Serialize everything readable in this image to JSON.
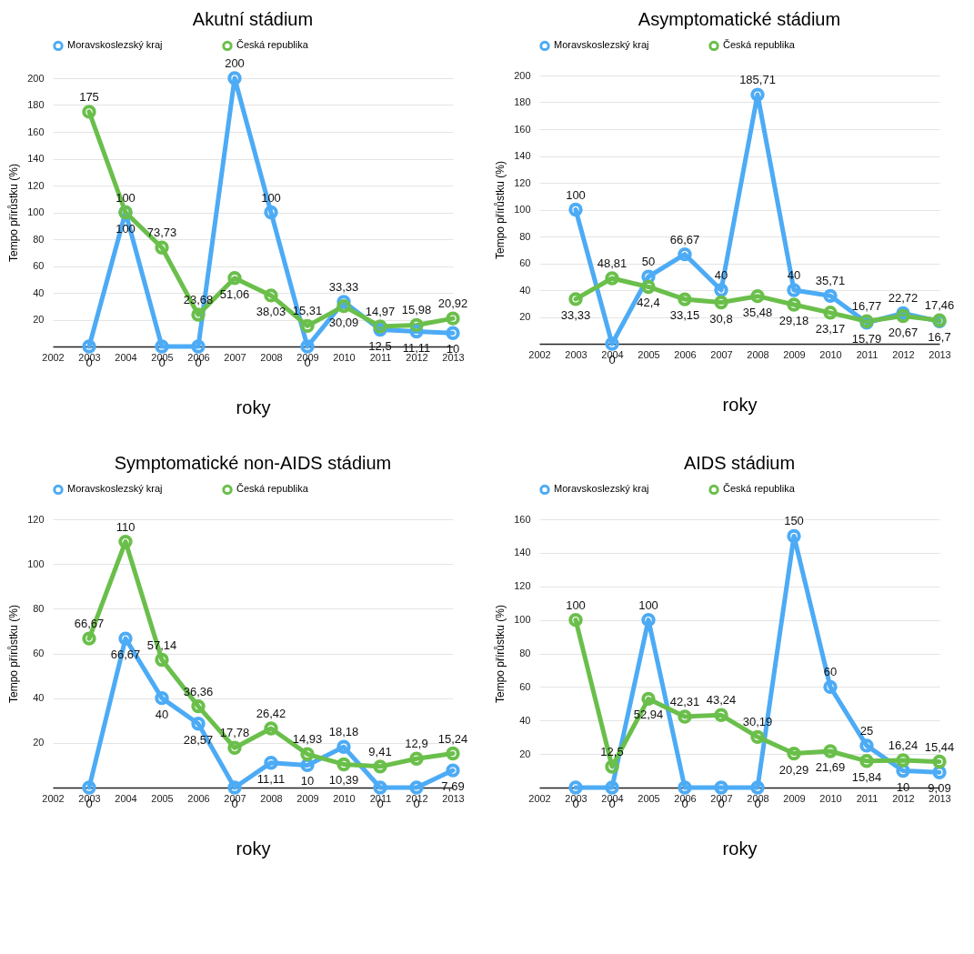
{
  "chart_data": [
    {
      "type": "line",
      "title": "Akutní stádium",
      "xlabel": "roky",
      "ylabel": "Tempo přírůstku (%)",
      "x": [
        2003,
        2004,
        2005,
        2006,
        2007,
        2008,
        2009,
        2010,
        2011,
        2012,
        2013
      ],
      "xlim": [
        2002,
        2013
      ],
      "xticks": [
        2002,
        2003,
        2004,
        2005,
        2006,
        2007,
        2008,
        2009,
        2010,
        2011,
        2012,
        2013
      ],
      "ylim": [
        0,
        200
      ],
      "yticks": [
        20,
        40,
        60,
        80,
        100,
        120,
        140,
        160,
        180,
        200
      ],
      "grid": "y",
      "legend": "top",
      "marker": "circle",
      "line_style": "solid",
      "series": [
        {
          "name": "Moravskoslezský kraj",
          "color": "#4dabf5",
          "values": [
            0,
            100,
            0,
            0,
            200,
            100,
            0,
            33.33,
            12.5,
            11.11,
            10
          ],
          "value_labels": [
            "0",
            "100",
            "0",
            "0",
            "200",
            "100",
            "0",
            "33,33",
            "12,5",
            "11,11",
            "10"
          ]
        },
        {
          "name": "Česká republika",
          "color": "#6abf4b",
          "values": [
            175,
            100,
            73.73,
            23.68,
            51.06,
            38.03,
            15.31,
            30.09,
            14.97,
            15.98,
            20.92
          ],
          "value_labels": [
            "175",
            "100",
            "73,73",
            "23,68",
            "51,06",
            "38,03",
            "15,31",
            "30,09",
            "14,97",
            "15,98",
            "20,92"
          ]
        }
      ]
    },
    {
      "type": "line",
      "title": "Asymptomatické stádium",
      "xlabel": "roky",
      "ylabel": "Tempo přírůstku (%)",
      "x": [
        2003,
        2004,
        2005,
        2006,
        2007,
        2008,
        2009,
        2010,
        2011,
        2012,
        2013
      ],
      "xlim": [
        2002,
        2013
      ],
      "xticks": [
        2002,
        2003,
        2004,
        2005,
        2006,
        2007,
        2008,
        2009,
        2010,
        2011,
        2012,
        2013
      ],
      "ylim": [
        0,
        200
      ],
      "yticks": [
        20,
        40,
        60,
        80,
        100,
        120,
        140,
        160,
        180,
        200
      ],
      "grid": "y",
      "legend": "top",
      "marker": "circle",
      "line_style": "solid",
      "series": [
        {
          "name": "Moravskoslezský kraj",
          "color": "#4dabf5",
          "values": [
            100,
            0,
            50,
            66.67,
            40,
            185.71,
            40,
            35.71,
            15.79,
            22.72,
            16.7
          ],
          "value_labels": [
            "100",
            "0",
            "50",
            "66,67",
            "40",
            "185,71",
            "40",
            "35,71",
            "15,79",
            "22,72",
            "16,7"
          ]
        },
        {
          "name": "Česká republika",
          "color": "#6abf4b",
          "values": [
            33.33,
            48.81,
            42.4,
            33.15,
            30.8,
            35.48,
            29.18,
            23.17,
            16.77,
            20.67,
            17.46
          ],
          "value_labels": [
            "33,33",
            "48,81",
            "42,4",
            "33,15",
            "30,8",
            "35,48",
            "29,18",
            "23,17",
            "16,77",
            "20,67",
            "17,46"
          ]
        }
      ]
    },
    {
      "type": "line",
      "title": "Symptomatické non-AIDS stádium",
      "xlabel": "roky",
      "ylabel": "Tempo přírůstku (%)",
      "x": [
        2003,
        2004,
        2005,
        2006,
        2007,
        2008,
        2009,
        2010,
        2011,
        2012,
        2013
      ],
      "xlim": [
        2002,
        2013
      ],
      "xticks": [
        2002,
        2003,
        2004,
        2005,
        2006,
        2007,
        2008,
        2009,
        2010,
        2011,
        2012,
        2013
      ],
      "ylim": [
        0,
        120
      ],
      "yticks": [
        20,
        40,
        60,
        80,
        100,
        120
      ],
      "grid": "y",
      "legend": "top",
      "marker": "circle",
      "line_style": "solid",
      "series": [
        {
          "name": "Moravskoslezský kraj",
          "color": "#4dabf5",
          "values": [
            0,
            66.67,
            40,
            28.57,
            0,
            11.11,
            10,
            18.18,
            0,
            0,
            7.69
          ],
          "value_labels": [
            "0",
            "66,67",
            "40",
            "28,57",
            "0",
            "11,11",
            "10",
            "18,18",
            "0",
            "0",
            "7,69"
          ]
        },
        {
          "name": "Česká republika",
          "color": "#6abf4b",
          "values": [
            66.67,
            110,
            57.14,
            36.36,
            17.78,
            26.42,
            14.93,
            10.39,
            9.41,
            12.9,
            15.24
          ],
          "value_labels": [
            "66,67",
            "110",
            "57,14",
            "36,36",
            "17,78",
            "26,42",
            "14,93",
            "10,39",
            "9,41",
            "12,9",
            "15,24"
          ]
        }
      ]
    },
    {
      "type": "line",
      "title": "AIDS stádium",
      "xlabel": "roky",
      "ylabel": "Tempo přírůstku (%)",
      "x": [
        2003,
        2004,
        2005,
        2006,
        2007,
        2008,
        2009,
        2010,
        2011,
        2012,
        2013
      ],
      "xlim": [
        2002,
        2013
      ],
      "xticks": [
        2002,
        2003,
        2004,
        2005,
        2006,
        2007,
        2008,
        2009,
        2010,
        2011,
        2012,
        2013
      ],
      "ylim": [
        0,
        160
      ],
      "yticks": [
        20,
        40,
        60,
        80,
        100,
        120,
        140,
        160
      ],
      "grid": "y",
      "legend": "top",
      "marker": "circle",
      "line_style": "solid",
      "series": [
        {
          "name": "Moravskoslezský kraj",
          "color": "#4dabf5",
          "values": [
            0,
            0,
            100,
            0,
            0,
            0,
            150,
            60,
            25,
            10,
            9.09
          ],
          "value_labels": [
            "0",
            "0",
            "100",
            "0",
            "0",
            "0",
            "150",
            "60",
            "25",
            "10",
            "9,09"
          ]
        },
        {
          "name": "Česká republika",
          "color": "#6abf4b",
          "values": [
            100,
            12.5,
            52.94,
            42.31,
            43.24,
            30.19,
            20.29,
            21.69,
            15.84,
            16.24,
            15.44
          ],
          "value_labels": [
            "100",
            "12,5",
            "52,94",
            "42,31",
            "43,24",
            "30,19",
            "20,29",
            "21,69",
            "15,84",
            "16,24",
            "15,44"
          ]
        }
      ]
    }
  ]
}
